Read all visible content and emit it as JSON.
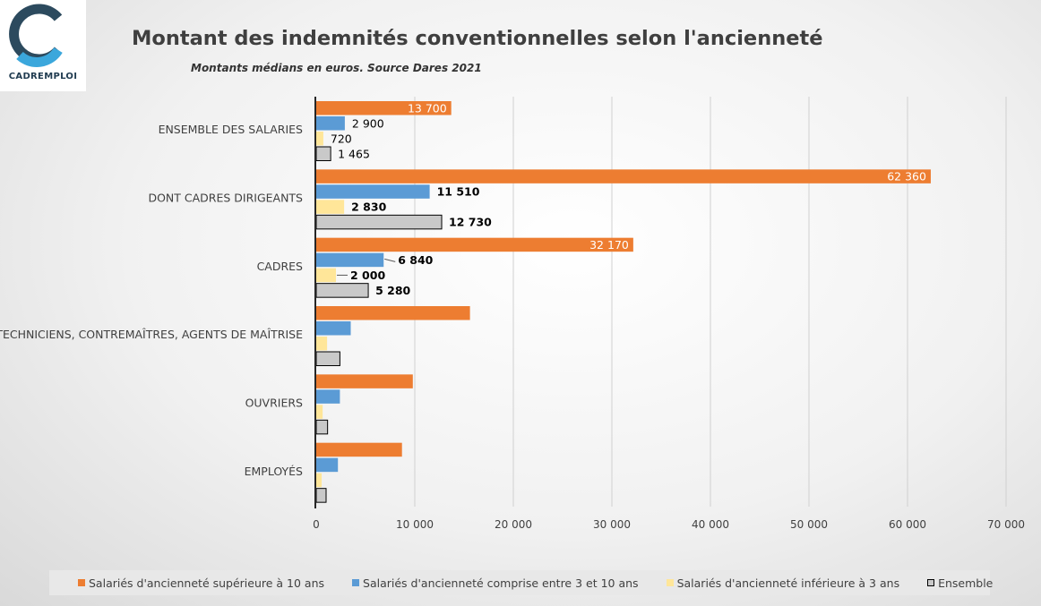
{
  "logo": {
    "text": "CADREMPLOI"
  },
  "chart_data": {
    "type": "bar",
    "orientation": "horizontal",
    "title": "Montant des indemnités conventionnelles selon l'ancienneté",
    "subtitle": "Montants médians en euros. Source Dares 2021",
    "categories": [
      "ENSEMBLE DES SALARIES",
      "DONT CADRES DIRIGEANTS",
      "CADRES",
      "TECHNICIENS, CONTREMAÎTRES, AGENTS DE MAÎTRISE",
      "OUVRIERS",
      "EMPLOYÉS"
    ],
    "series": [
      {
        "name": "Salariés d'ancienneté supérieure à 10 ans",
        "color": "#ed7d31",
        "values": [
          13700,
          62360,
          32170,
          15600,
          9800,
          8700
        ],
        "labels": [
          "13 700",
          "62 360",
          "32 170",
          null,
          null,
          null
        ]
      },
      {
        "name": "Salariés d'ancienneté comprise entre 3 et 10 ans",
        "color": "#5b9bd5",
        "values": [
          2900,
          11510,
          6840,
          3500,
          2400,
          2200
        ],
        "labels": [
          "2 900",
          "11 510",
          "6 840",
          null,
          null,
          null
        ]
      },
      {
        "name": "Salariés d'ancienneté inférieure à 3 ans",
        "color": "#ffe699",
        "values": [
          720,
          2830,
          2000,
          1100,
          650,
          550
        ],
        "labels": [
          "720",
          "2 830",
          "2 000",
          null,
          null,
          null
        ]
      },
      {
        "name": "Ensemble",
        "color": "#c9c9c9",
        "values": [
          1465,
          12730,
          5280,
          2400,
          1150,
          1000
        ],
        "labels": [
          "1 465",
          "12 730",
          "5 280",
          null,
          null,
          null
        ]
      }
    ],
    "xlim": [
      0,
      70000
    ],
    "xticks": [
      0,
      10000,
      20000,
      30000,
      40000,
      50000,
      60000,
      70000
    ],
    "xtick_labels": [
      "0",
      "10 000",
      "20 000",
      "30 000",
      "40 000",
      "50 000",
      "60 000",
      "70 000"
    ],
    "grid": true,
    "legend_position": "bottom"
  }
}
